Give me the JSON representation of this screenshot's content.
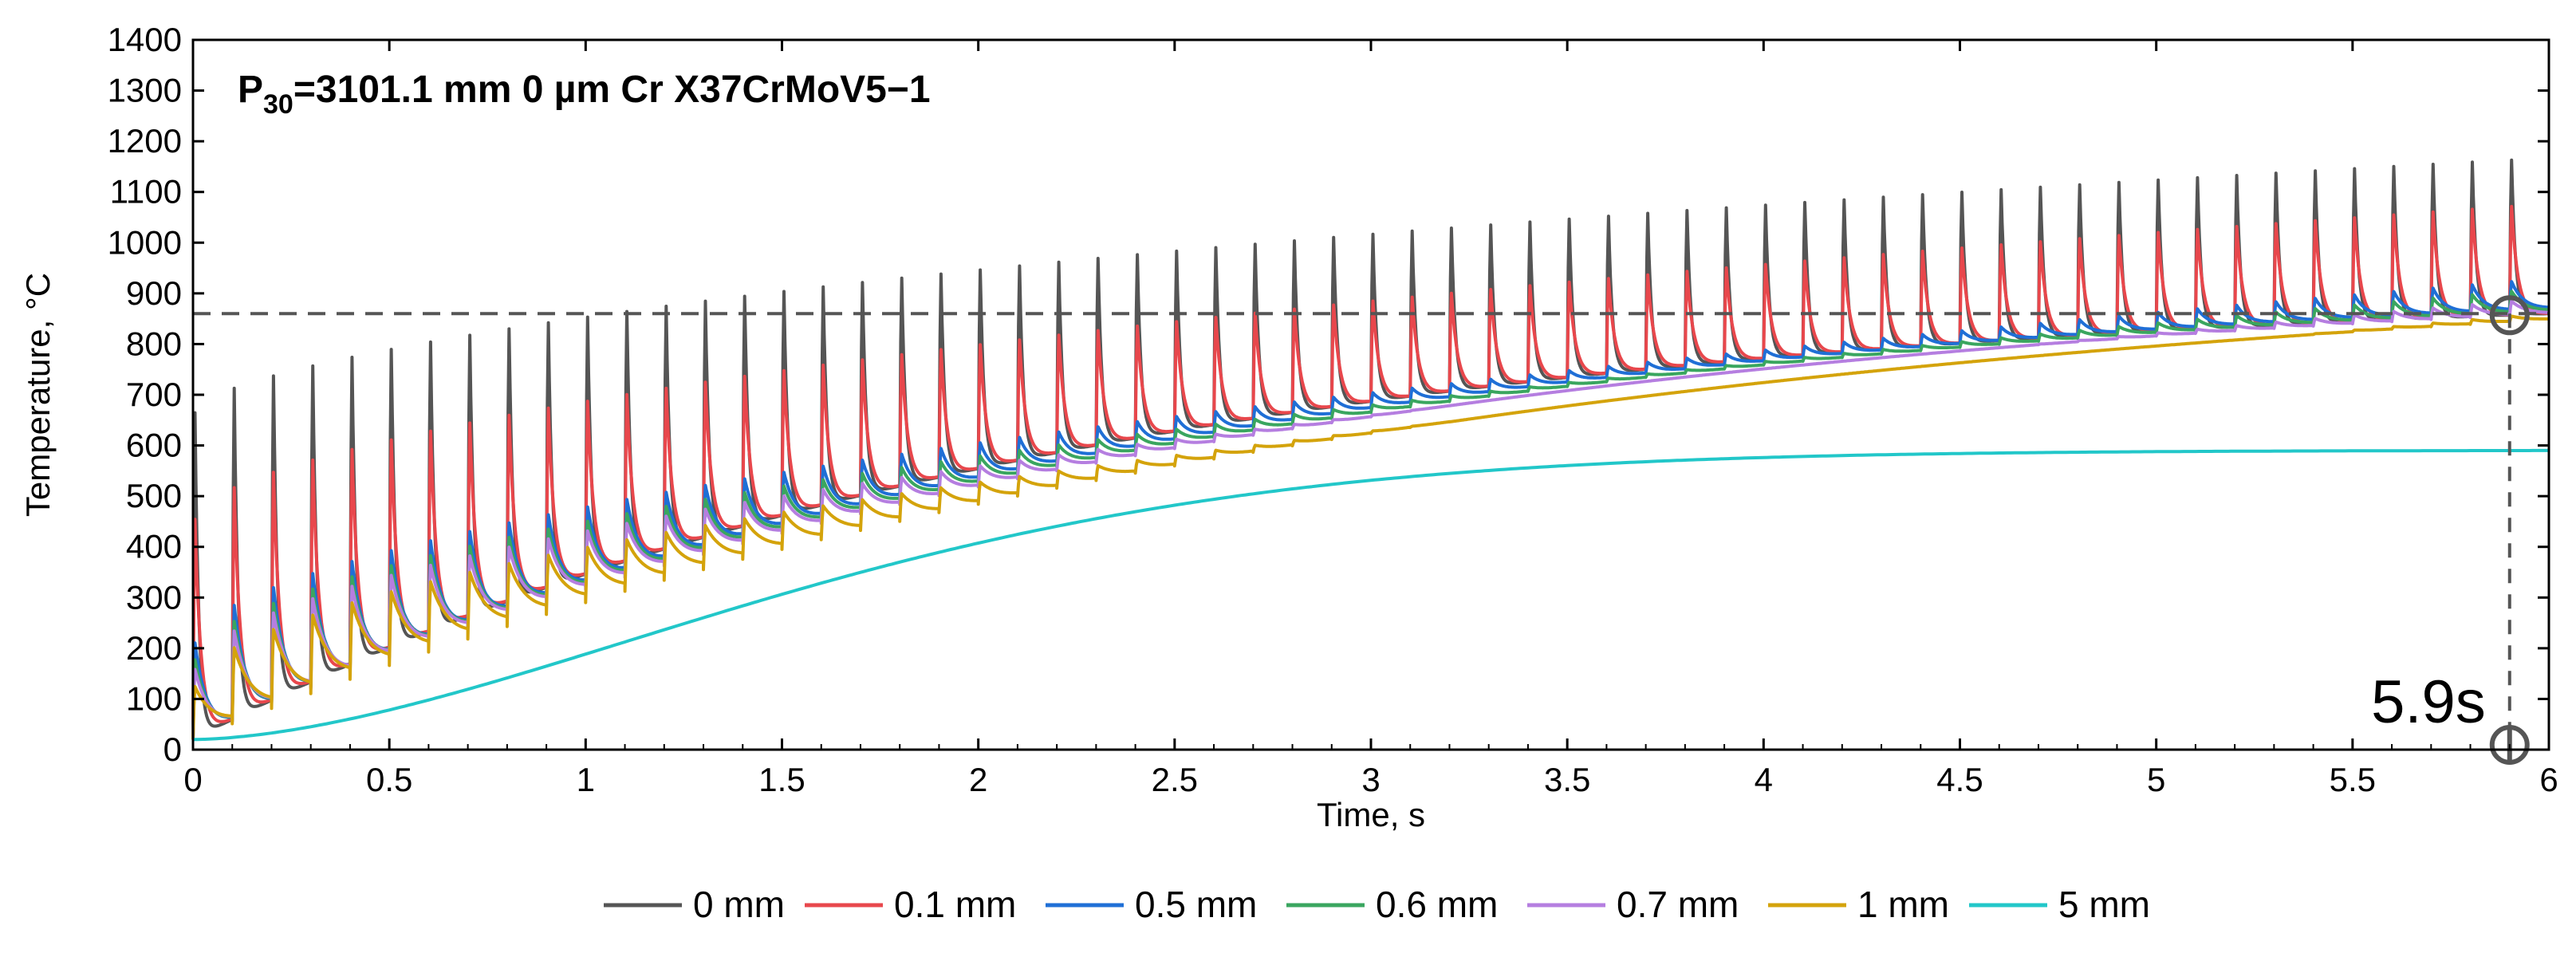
{
  "chart_data": {
    "type": "line",
    "title_main": "P",
    "title_sub": "30",
    "title_rest": "=3101.1 mm 0 µm Cr X37CrMoV5−1",
    "xlabel": "Time, s",
    "ylabel": "Temperature, °C",
    "xlim": [
      0,
      6
    ],
    "ylim": [
      0,
      1400
    ],
    "xticks": [
      0,
      0.5,
      1,
      1.5,
      2,
      2.5,
      3,
      3.5,
      4,
      4.5,
      5,
      5.5,
      6
    ],
    "xtick_labels": [
      "0",
      "0.5",
      "1",
      "1.5",
      "2",
      "2.5",
      "3",
      "3.5",
      "4",
      "4.5",
      "5",
      "5.5",
      "6"
    ],
    "yticks": [
      0,
      100,
      200,
      300,
      400,
      500,
      600,
      700,
      800,
      900,
      1000,
      1100,
      1200,
      1300,
      1400
    ],
    "ytick_labels": [
      "0",
      "100",
      "200",
      "300",
      "400",
      "500",
      "600",
      "700",
      "800",
      "900",
      "1000",
      "1100",
      "1200",
      "1300",
      "1400"
    ],
    "pulse_period_s": 0.1,
    "threshold_line": {
      "y": 860,
      "style": "dashed"
    },
    "marker_line": {
      "x": 5.9,
      "style": "dashed"
    },
    "annotation": {
      "text": "5.9s",
      "x": 5.9,
      "y": 0
    },
    "series": [
      {
        "name": "0 mm",
        "color": "#555555",
        "base_start": 20,
        "base_end": 860,
        "base_rate": 0.45,
        "base_power": 1.0,
        "initial_rise": 0,
        "first_peak": 730,
        "last_peak": 1195,
        "spike_decay": 0.01
      },
      {
        "name": "0.1 mm",
        "color": "#e8474c",
        "base_start": 20,
        "base_end": 860,
        "base_rate": 0.45,
        "base_power": 1.0,
        "initial_rise": 0,
        "first_peak": 480,
        "last_peak": 1085,
        "spike_decay": 0.016
      },
      {
        "name": "0.5 mm",
        "color": "#1f6fd6",
        "base_start": 20,
        "base_end": 870,
        "base_rate": 0.4,
        "base_power": 1.0,
        "initial_rise": 100,
        "first_peak": 215,
        "last_peak": 925,
        "spike_decay": 0.03
      },
      {
        "name": "0.6 mm",
        "color": "#3aa65f",
        "base_start": 20,
        "base_end": 865,
        "base_rate": 0.39,
        "base_power": 1.0,
        "initial_rise": 90,
        "first_peak": 180,
        "last_peak": 905,
        "spike_decay": 0.034
      },
      {
        "name": "0.7 mm",
        "color": "#b57ee0",
        "base_start": 20,
        "base_end": 860,
        "base_rate": 0.38,
        "base_power": 1.0,
        "initial_rise": 80,
        "first_peak": 160,
        "last_peak": 885,
        "spike_decay": 0.038
      },
      {
        "name": "1 mm",
        "color": "#d4a30b",
        "base_start": 20,
        "base_end": 848,
        "base_rate": 0.33,
        "base_power": 1.0,
        "initial_rise": 70,
        "first_peak": 125,
        "last_peak": 855,
        "spike_decay": 0.05
      },
      {
        "name": "5 mm",
        "color": "#22c7c9",
        "base_start": 20,
        "base_end": 590,
        "base_rate": 0.35,
        "base_power": 1.7,
        "initial_rise": 0,
        "first_peak": 0,
        "last_peak": 0,
        "spike_decay": 0.05
      }
    ]
  }
}
